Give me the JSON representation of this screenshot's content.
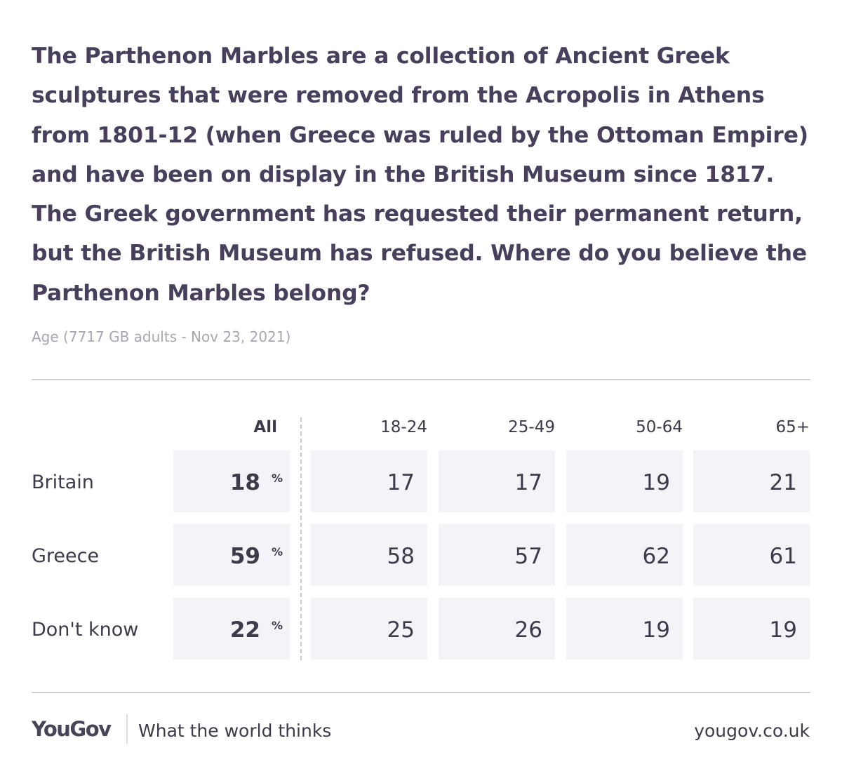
{
  "title": "The Parthenon Marbles are a collection of Ancient Greek sculptures that were removed from the Acropolis in Athens from 1801-12 (when Greece was ruled by the Ottoman Empire) and have been on display in the British Museum since 1817. The Greek government has requested their permanent return, but the British Museum has refused. Where do you believe the Parthenon Marbles belong?",
  "subtitle": "Age (7717 GB adults - Nov 23, 2021)",
  "chart_data": {
    "type": "table",
    "columns": [
      "All",
      "18-24",
      "25-49",
      "50-64",
      "65+"
    ],
    "rows": [
      {
        "label": "Britain",
        "values": [
          18,
          17,
          17,
          19,
          21
        ]
      },
      {
        "label": "Greece",
        "values": [
          59,
          58,
          57,
          62,
          61
        ]
      },
      {
        "label": "Don't know",
        "values": [
          22,
          25,
          26,
          19,
          19
        ]
      }
    ],
    "unit": "%"
  },
  "footer": {
    "logo": "YouGov",
    "tagline": "What the world thinks",
    "site": "yougov.co.uk"
  },
  "colors": {
    "title": "#473f5c",
    "cell_bg": "#f4f4f8",
    "text": "#3f3a4a"
  }
}
